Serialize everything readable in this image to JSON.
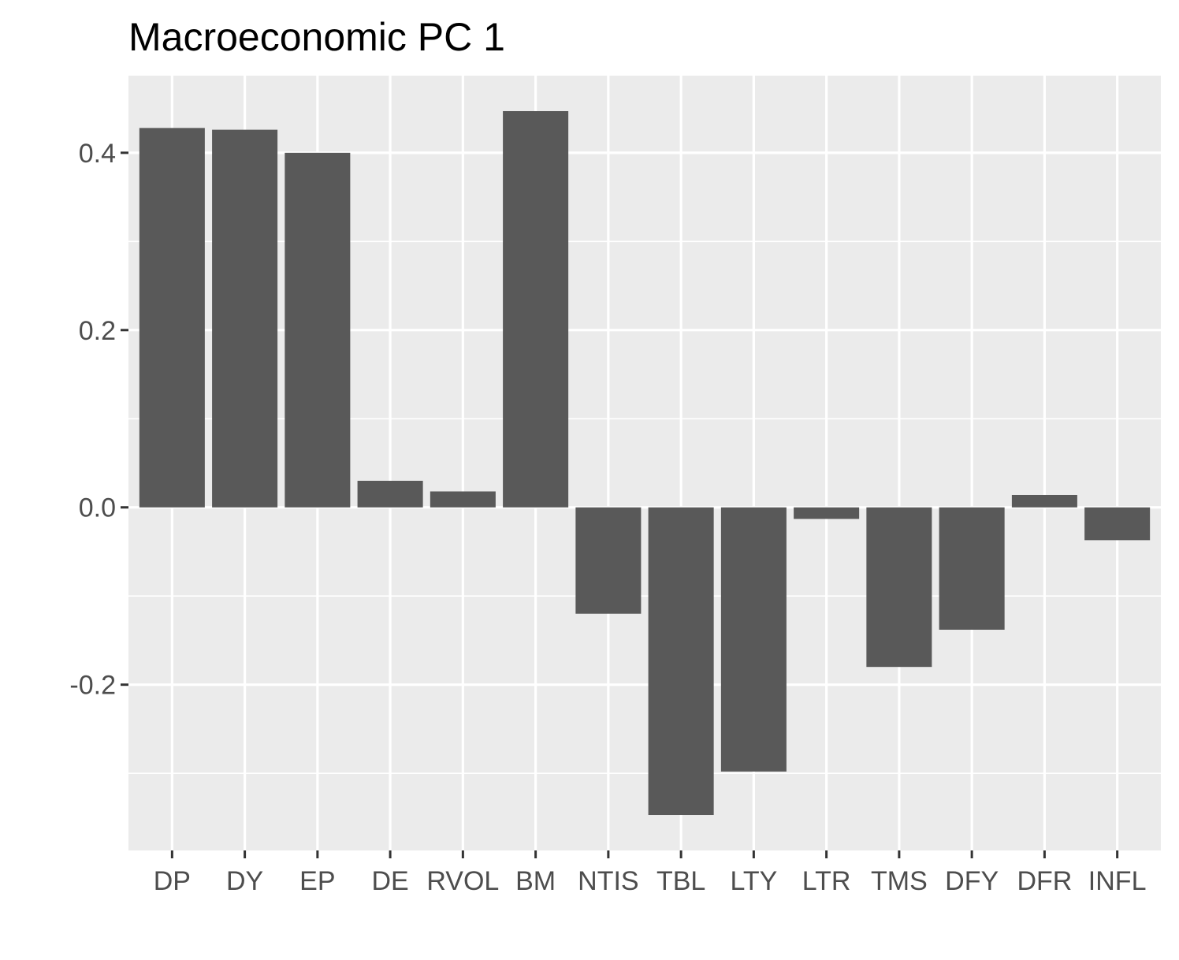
{
  "chart_data": {
    "type": "bar",
    "title": "Macroeconomic PC 1",
    "xlabel": "",
    "ylabel": "",
    "categories": [
      "DP",
      "DY",
      "EP",
      "DE",
      "RVOL",
      "BM",
      "NTIS",
      "TBL",
      "LTY",
      "LTR",
      "TMS",
      "DFY",
      "DFR",
      "INFL"
    ],
    "values": [
      0.428,
      0.426,
      0.4,
      0.03,
      0.018,
      0.447,
      -0.12,
      -0.347,
      -0.298,
      -0.013,
      -0.18,
      -0.138,
      0.014,
      -0.037
    ],
    "ylim": [
      -0.387,
      0.487
    ],
    "yticks": [
      -0.2,
      0.0,
      0.2,
      0.4
    ],
    "ytick_labels": [
      "-0.2",
      "0.0",
      "0.2",
      "0.4"
    ],
    "grid": true,
    "colors": {
      "panel": "#ebebeb",
      "grid": "#ffffff",
      "bar": "#595959",
      "tick": "#333333",
      "label": "#4d4d4d"
    }
  }
}
